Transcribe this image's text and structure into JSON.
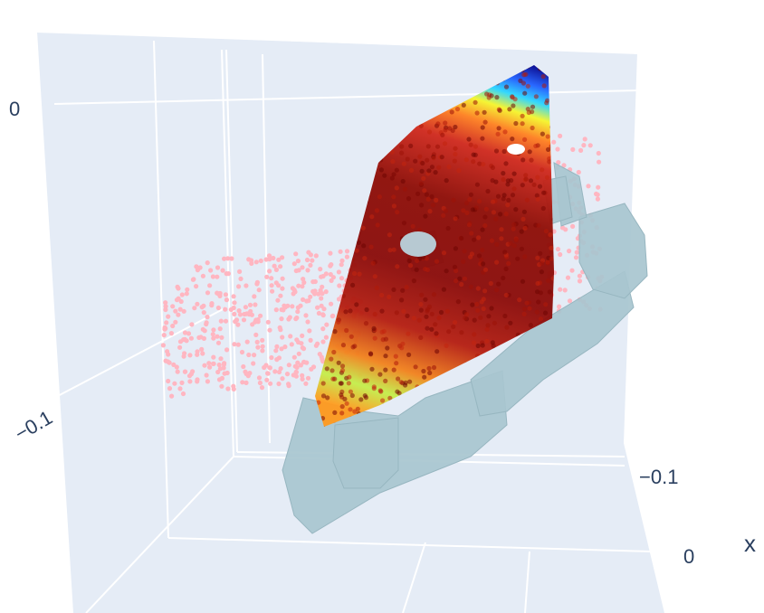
{
  "chart_data": {
    "type": "scatter",
    "subtype": "3d-scatter-with-mesh",
    "background_color": "#e5ecf6",
    "grid_color": "#ffffff",
    "axes": {
      "x": {
        "title": "x",
        "tick_labels": [
          "−0.1",
          "0"
        ]
      },
      "z": {
        "title": "",
        "tick_labels": [
          "−0.1",
          "0"
        ]
      }
    },
    "series": [
      {
        "marker_color": "#ffb6c1"
      },
      {
        "colorscale": "jet"
      },
      {
        "color": "#a8c5cf"
      }
    ]
  }
}
